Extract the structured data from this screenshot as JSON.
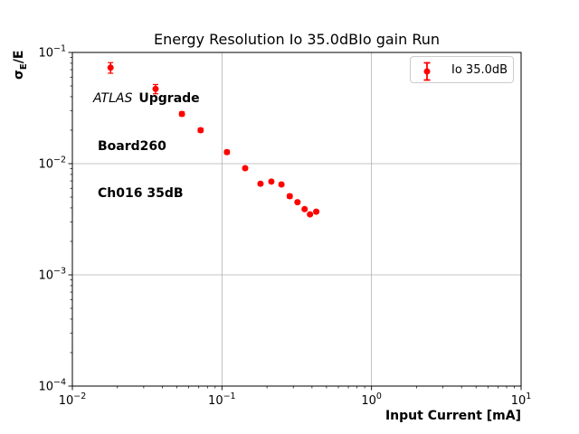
{
  "figure": {
    "background": "#ffffff"
  },
  "chart_data": {
    "type": "scatter",
    "title": "Energy Resolution Io 35.0dBIo gain Run",
    "xlabel": "Input Current [mA]",
    "ylabel": "σE/E",
    "ylabel_parts": {
      "sigma": "σ",
      "subscript": "E",
      "rest": "/E"
    },
    "xscale": "log",
    "yscale": "log",
    "xlim": [
      0.01,
      10
    ],
    "ylim": [
      0.0001,
      0.1
    ],
    "grid": true,
    "grid_color": "#b0b0b0",
    "axis_color": "#000000",
    "x_tick_exponents": [
      -2,
      -1,
      0,
      1
    ],
    "y_tick_exponents": [
      -1,
      -2,
      -3,
      -4
    ],
    "annotation": {
      "line1_italic": "ATLAS",
      "line1_bold": "Upgrade",
      "line2": "Board260",
      "line3": "Ch016 35dB"
    },
    "legend": {
      "label": "Io 35.0dB",
      "position": "upper right"
    },
    "series": [
      {
        "name": "Io 35.0dB",
        "color": "#ff0000",
        "marker": "o",
        "points": [
          {
            "x": 0.018,
            "y": 0.073,
            "yerr": 0.008
          },
          {
            "x": 0.036,
            "y": 0.047,
            "yerr": 0.0045
          },
          {
            "x": 0.054,
            "y": 0.028,
            "yerr": 0.0012
          },
          {
            "x": 0.072,
            "y": 0.02,
            "yerr": 0.0008
          },
          {
            "x": 0.108,
            "y": 0.0127,
            "yerr": 0.0005
          },
          {
            "x": 0.143,
            "y": 0.0091,
            "yerr": 0.0003
          },
          {
            "x": 0.181,
            "y": 0.0066,
            "yerr": 0.0002
          },
          {
            "x": 0.214,
            "y": 0.0069,
            "yerr": 0.0002
          },
          {
            "x": 0.25,
            "y": 0.0065,
            "yerr": 0.0002
          },
          {
            "x": 0.284,
            "y": 0.0051,
            "yerr": 0.0002
          },
          {
            "x": 0.32,
            "y": 0.0045,
            "yerr": 0.0001
          },
          {
            "x": 0.357,
            "y": 0.0039,
            "yerr": 0.0001
          },
          {
            "x": 0.388,
            "y": 0.0035,
            "yerr": 0.0001
          },
          {
            "x": 0.427,
            "y": 0.0037,
            "yerr": 0.0001
          }
        ]
      }
    ]
  }
}
